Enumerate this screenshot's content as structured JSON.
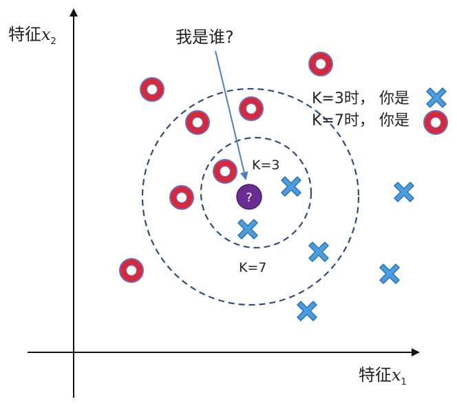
{
  "axes": {
    "y_label": "特征",
    "y_var": "x",
    "y_sub": "2",
    "x_label": "特征",
    "x_var": "x",
    "x_sub": "1"
  },
  "question": {
    "label": "我是谁?",
    "marker_text": "?"
  },
  "circles": {
    "inner_label": "K=3",
    "outer_label": "K=7"
  },
  "answers": [
    {
      "label": "K=3时， 你是",
      "icon": "blue-cross-icon"
    },
    {
      "label": "K=7时， 你是",
      "icon": "red-ring-icon"
    }
  ],
  "colors": {
    "ring_outer": "#d9283a",
    "ring_border": "#6a6fc4",
    "ring_center": "#ffffff",
    "cross_fill": "#4a9ee0",
    "cross_stroke": "#2a6fb3",
    "question_fill": "#6a2c91",
    "circle_stroke": "#2f4b7c",
    "arrow": "#4a7fc1",
    "axis": "#111111"
  }
}
